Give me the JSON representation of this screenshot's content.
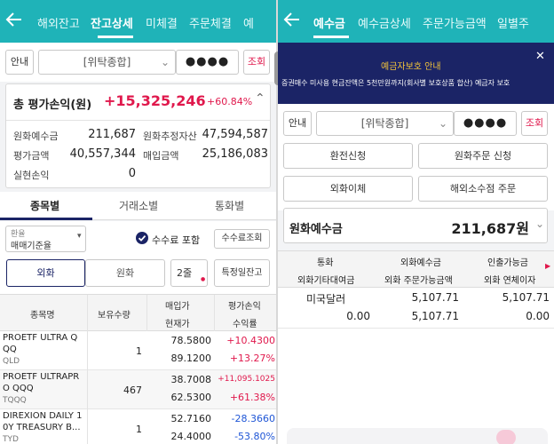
{
  "left": {
    "tabs": [
      "해외잔고",
      "잔고상세",
      "미체결",
      "주문체결",
      "예"
    ],
    "info_btn": "안내",
    "account_select": "[위탁종합]",
    "password": "●●●●",
    "query_btn": "조회",
    "summary": {
      "title": "총 평가손익(원)",
      "total_pl": "+15,325,246",
      "total_rate": "+60.84%",
      "rows": [
        {
          "l1": "원화예수금",
          "v1": "211,687",
          "l2": "원화추정자산",
          "v2": "47,594,587"
        },
        {
          "l1": "평가금액",
          "v1": "40,557,344",
          "l2": "매입금액",
          "v2": "25,186,083"
        },
        {
          "l1": "실현손익",
          "v1": "0",
          "l2": "",
          "v2": ""
        }
      ]
    },
    "sub_tabs": [
      "종목별",
      "거래소별",
      "통화별"
    ],
    "fx_label": "환율",
    "fx_value": "매매기준율",
    "fee_label": "수수료 포함",
    "fee_query_btn": "수수료조회",
    "seg": [
      "외화",
      "원화"
    ],
    "lines_btn": "2줄",
    "specific_btn": "특정일잔고",
    "table_head": {
      "name": "종목명",
      "qty": "보유수량",
      "buy": "매입가",
      "cur": "현재가",
      "pl": "평가손익",
      "rate": "수익률"
    },
    "stocks": [
      {
        "name": "PROETF ULTRA Q",
        "name2": "QQ",
        "code": "QLD",
        "qty": "1",
        "buy": "78.5800",
        "cur": "89.1200",
        "pl": "+10.4300",
        "rate": "+13.27%",
        "color": "#e0184c"
      },
      {
        "name": "PROETF ULTRAPR",
        "name2": "O QQQ",
        "code": "TQQQ",
        "qty": "467",
        "buy": "38.7008",
        "cur": "62.5300",
        "pl": "+11,095.1025",
        "rate": "+61.38%",
        "color": "#e0184c"
      },
      {
        "name": "DIREXION DAILY 1",
        "name2": "0Y TREASURY B...",
        "code": "TYD",
        "qty": "1",
        "buy": "52.7160",
        "cur": "24.4000",
        "pl": "-28.3660",
        "rate": "-53.80%",
        "color": "#1f56d6"
      }
    ]
  },
  "right": {
    "tabs": [
      "예수금",
      "예수금상세",
      "주문가능금액",
      "일별주"
    ],
    "banner_title": "예금자보호 안내",
    "banner_text": "증권매수 미사용 현금잔액은 5천만원까지(회사별 보호상품 합산) 예금자 보호",
    "info_btn": "안내",
    "account_select": "[위탁종합]",
    "password": "●●●●",
    "query_btn": "조회",
    "buttons": [
      "환전신청",
      "원화주문 신청",
      "외화이체",
      "해외소수점 주문"
    ],
    "deposit_label": "원화예수금",
    "deposit_value": "211,687원",
    "table_head": {
      "c1a": "통화",
      "c1b": "외화기타대여금",
      "c2a": "외화예수금",
      "c2b": "외화 주문가능금액",
      "c3a": "인출가능금",
      "c3b": "외화 연체이자"
    },
    "currency_row": {
      "name": "미국달러",
      "deposit": "5,107.71",
      "withdraw": "5,107.71",
      "lend": "0.00",
      "orderable": "5,107.71",
      "overdue": "0.00"
    }
  },
  "colors": {
    "header": "#1fb3b8",
    "navy": "#1b2466",
    "red": "#e0184c",
    "blue": "#1f56d6"
  }
}
